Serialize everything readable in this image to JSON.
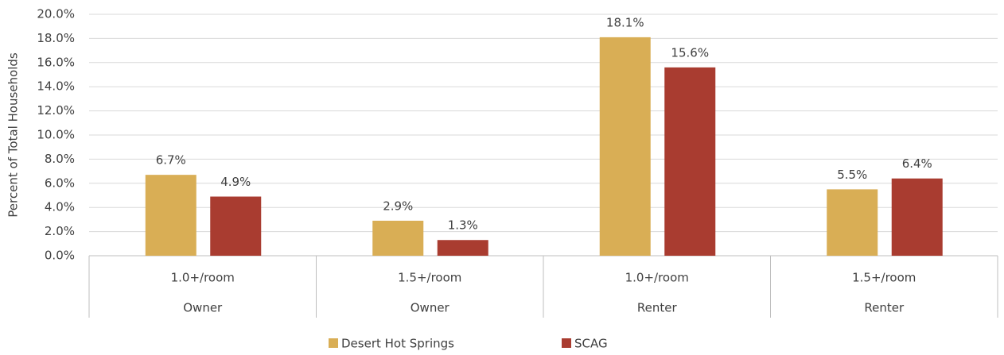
{
  "chart_data": {
    "type": "bar",
    "ylabel": "Percent of Total Households",
    "categories": [
      "1.0+/room",
      "1.5+/room",
      "1.0+/room",
      "1.5+/room"
    ],
    "groups": [
      "Owner",
      "Owner",
      "Renter",
      "Renter"
    ],
    "series": [
      {
        "name": "Desert Hot Springs",
        "color": "#d9ae55",
        "values": [
          6.7,
          2.9,
          18.1,
          5.5
        ],
        "value_labels": [
          "6.7%",
          "2.9%",
          "18.1%",
          "5.5%"
        ]
      },
      {
        "name": "SCAG",
        "color": "#a93c30",
        "values": [
          4.9,
          1.3,
          15.6,
          6.4
        ],
        "value_labels": [
          "4.9%",
          "1.3%",
          "15.6%",
          "6.4%"
        ]
      }
    ],
    "ylim": [
      0,
      20
    ],
    "yticks": [
      {
        "value": 0,
        "label": "0.0%"
      },
      {
        "value": 2,
        "label": "2.0%"
      },
      {
        "value": 4,
        "label": "4.0%"
      },
      {
        "value": 6,
        "label": "6.0%"
      },
      {
        "value": 8,
        "label": "8.0%"
      },
      {
        "value": 10,
        "label": "10.0%"
      },
      {
        "value": 12,
        "label": "12.0%"
      },
      {
        "value": 14,
        "label": "14.0%"
      },
      {
        "value": 16,
        "label": "16.0%"
      },
      {
        "value": 18,
        "label": "18.0%"
      },
      {
        "value": 20,
        "label": "20.0%"
      }
    ],
    "grid": true,
    "legend": "bottom"
  }
}
